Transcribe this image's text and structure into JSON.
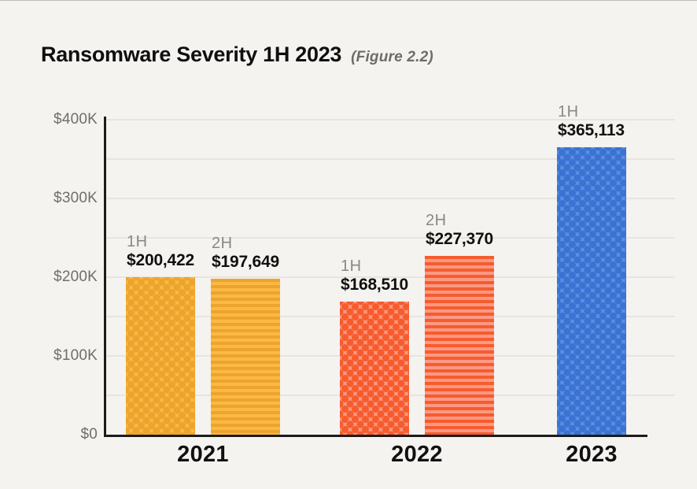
{
  "header": {
    "title": "Ransomware Severity 1H 2023",
    "subtitle": "(Figure 2.2)"
  },
  "chart_data": {
    "type": "bar",
    "title": "Ransomware Severity 1H 2023",
    "figure_label": "(Figure 2.2)",
    "xlabel": "",
    "ylabel": "",
    "ylim": [
      0,
      400000
    ],
    "grid": true,
    "grid_step": 50000,
    "legend_position": "none",
    "yticks": [
      {
        "label": "$400K",
        "value": 400000
      },
      {
        "label": "$300K",
        "value": 300000
      },
      {
        "label": "$200K",
        "value": 200000
      },
      {
        "label": "$100K",
        "value": 100000
      },
      {
        "label": "$0",
        "value": 0
      }
    ],
    "groups": [
      {
        "year": "2021",
        "bars": [
          {
            "half": "1H",
            "value": 200422,
            "value_label": "$200,422",
            "pattern": "dots",
            "color": "#FBB944",
            "pattern_color": "#ECA42F"
          },
          {
            "half": "2H",
            "value": 197649,
            "value_label": "$197,649",
            "pattern": "stripes",
            "color": "#FBB944",
            "pattern_color": "#ECA42F"
          }
        ]
      },
      {
        "year": "2022",
        "bars": [
          {
            "half": "1H",
            "value": 168510,
            "value_label": "$168,510",
            "pattern": "dots",
            "color": "#FD9884",
            "pattern_color": "#F65C2D"
          },
          {
            "half": "2H",
            "value": 227370,
            "value_label": "$227,370",
            "pattern": "stripes",
            "color": "#FD9884",
            "pattern_color": "#F65C2D"
          }
        ]
      },
      {
        "year": "2023",
        "bars": [
          {
            "half": "1H",
            "value": 365113,
            "value_label": "$365,113",
            "pattern": "dots",
            "color": "#5B90DF",
            "pattern_color": "#3B72D3"
          }
        ]
      }
    ],
    "series_colors": {
      "2021": "#FBB944",
      "2022": "#FD9884",
      "2023": "#5B90DF"
    },
    "axis_color": "#1C1C1C",
    "gridline_color": "#E7E5E0",
    "background_color": "#F4F3F0"
  }
}
